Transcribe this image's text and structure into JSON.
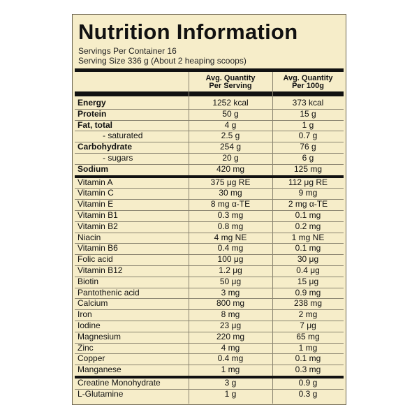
{
  "header": {
    "title": "Nutrition Information",
    "servings_per_container": "Servings Per Container 16",
    "serving_size": "Serving Size 336 g (About 2 heaping scoops)"
  },
  "table": {
    "columns": [
      [
        "Avg. Quantity",
        "Per Serving"
      ],
      [
        "Avg. Quantity",
        "Per 100g"
      ]
    ],
    "groups": [
      {
        "rows": [
          {
            "name": "Energy",
            "per_serving": "1252 kcal",
            "per_100g": "373 kcal",
            "bold": true
          },
          {
            "name": "Protein",
            "per_serving": "50 g",
            "per_100g": "15 g",
            "bold": true
          },
          {
            "name": "Fat, total",
            "per_serving": "4 g",
            "per_100g": "1 g",
            "bold": true
          },
          {
            "name": "- saturated",
            "per_serving": "2.5 g",
            "per_100g": "0.7 g",
            "bold": false
          },
          {
            "name": "Carbohydrate",
            "per_serving": "254 g",
            "per_100g": "76 g",
            "bold": true
          },
          {
            "name": "- sugars",
            "per_serving": "20 g",
            "per_100g": "6 g",
            "bold": false
          },
          {
            "name": "Sodium",
            "per_serving": "420 mg",
            "per_100g": "125 mg",
            "bold": true
          }
        ]
      },
      {
        "rows": [
          {
            "name": "Vitamin A",
            "per_serving": "375 μg RE",
            "per_100g": "112 μg RE",
            "bold": false
          },
          {
            "name": "Vitamin C",
            "per_serving": "30 mg",
            "per_100g": "9 mg",
            "bold": false
          },
          {
            "name": "Vitamin E",
            "per_serving": "8 mg α-TE",
            "per_100g": "2 mg α-TE",
            "bold": false
          },
          {
            "name": "Vitamin B1",
            "per_serving": "0.3 mg",
            "per_100g": "0.1 mg",
            "bold": false
          },
          {
            "name": "Vitamin B2",
            "per_serving": "0.8 mg",
            "per_100g": "0.2 mg",
            "bold": false
          },
          {
            "name": "Niacin",
            "per_serving": "4 mg NE",
            "per_100g": "1 mg NE",
            "bold": false
          },
          {
            "name": "Vitamin B6",
            "per_serving": "0.4 mg",
            "per_100g": "0.1 mg",
            "bold": false
          },
          {
            "name": "Folic acid",
            "per_serving": "100 μg",
            "per_100g": "30 μg",
            "bold": false
          },
          {
            "name": "Vitamin B12",
            "per_serving": "1.2 μg",
            "per_100g": "0.4 μg",
            "bold": false
          },
          {
            "name": "Biotin",
            "per_serving": "50 μg",
            "per_100g": "15 μg",
            "bold": false
          },
          {
            "name": "Pantothenic acid",
            "per_serving": "3 mg",
            "per_100g": "0.9 mg",
            "bold": false
          },
          {
            "name": "Calcium",
            "per_serving": "800 mg",
            "per_100g": "238 mg",
            "bold": false
          },
          {
            "name": "Iron",
            "per_serving": "8 mg",
            "per_100g": "2 mg",
            "bold": false
          },
          {
            "name": "Iodine",
            "per_serving": "23 μg",
            "per_100g": "7 μg",
            "bold": false
          },
          {
            "name": "Magnesium",
            "per_serving": "220 mg",
            "per_100g": "65 mg",
            "bold": false
          },
          {
            "name": "Zinc",
            "per_serving": "4 mg",
            "per_100g": "1 mg",
            "bold": false
          },
          {
            "name": "Copper",
            "per_serving": "0.4 mg",
            "per_100g": "0.1 mg",
            "bold": false
          },
          {
            "name": "Manganese",
            "per_serving": "1 mg",
            "per_100g": "0.3 mg",
            "bold": false
          }
        ]
      },
      {
        "rows": [
          {
            "name": "Creatine Monohydrate",
            "per_serving": "3 g",
            "per_100g": "0.9 g",
            "bold": false
          },
          {
            "name": "L-Glutamine",
            "per_serving": "1 g",
            "per_100g": "0.3 g",
            "bold": false
          }
        ]
      }
    ]
  }
}
